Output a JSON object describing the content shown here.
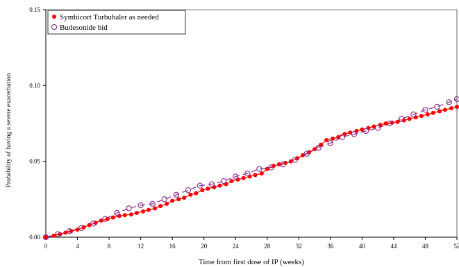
{
  "chart_data": {
    "type": "scatter",
    "title": "",
    "xlabel": "Time from first dose of IP (weeks)",
    "ylabel": "Probability of having a severe exacerbation",
    "xlim": [
      0,
      52
    ],
    "ylim": [
      0,
      0.15
    ],
    "x_ticks": [
      "0",
      "4",
      "8",
      "12",
      "16",
      "20",
      "24",
      "28",
      "32",
      "36",
      "40",
      "44",
      "48",
      "52"
    ],
    "y_ticks": [
      "0.00",
      "0.05",
      "0.10",
      "0.15"
    ],
    "legend_position": "top-left",
    "grid": false,
    "series": [
      {
        "name": "Symbicort Turbuhaler as needed",
        "marker": "filled-circle",
        "line_style": "solid",
        "color": "#ff0000",
        "x": [
          0,
          1,
          1.8,
          2.5,
          3.2,
          4,
          4.8,
          5.5,
          6.3,
          7,
          7.8,
          8.5,
          9.3,
          10,
          10.8,
          11.5,
          12.3,
          13,
          13.8,
          14.5,
          15.3,
          16,
          16.8,
          17.5,
          18.3,
          19,
          19.8,
          20.5,
          21.3,
          22,
          22.8,
          23.5,
          24.3,
          25,
          25.8,
          26.5,
          27.3,
          28,
          28.8,
          29.5,
          30.3,
          31,
          31.8,
          32.5,
          33.3,
          34,
          34.8,
          35.5,
          36.3,
          37,
          37.8,
          38.5,
          39.3,
          40,
          40.8,
          41.5,
          42.3,
          43,
          43.8,
          44.5,
          45.3,
          46,
          46.8,
          47.5,
          48.3,
          49,
          49.8,
          50.5,
          51.3,
          52
        ],
        "y": [
          0.0,
          0.001,
          0.002,
          0.003,
          0.004,
          0.005,
          0.0065,
          0.008,
          0.0095,
          0.011,
          0.012,
          0.013,
          0.014,
          0.0145,
          0.015,
          0.016,
          0.017,
          0.018,
          0.019,
          0.0205,
          0.022,
          0.024,
          0.025,
          0.026,
          0.028,
          0.029,
          0.031,
          0.032,
          0.033,
          0.034,
          0.035,
          0.037,
          0.038,
          0.039,
          0.04,
          0.041,
          0.042,
          0.045,
          0.047,
          0.048,
          0.049,
          0.05,
          0.052,
          0.054,
          0.056,
          0.058,
          0.061,
          0.064,
          0.065,
          0.066,
          0.068,
          0.069,
          0.07,
          0.071,
          0.072,
          0.073,
          0.074,
          0.075,
          0.0755,
          0.076,
          0.077,
          0.078,
          0.079,
          0.08,
          0.081,
          0.082,
          0.083,
          0.084,
          0.085,
          0.086
        ]
      },
      {
        "name": "Budesonide bid",
        "marker": "open-circle",
        "line_style": "dashed",
        "color": "#8a2b8a",
        "x": [
          0,
          1.5,
          3,
          4.5,
          6,
          7.5,
          9,
          10.5,
          12,
          13.5,
          15,
          16.5,
          18,
          19.5,
          21,
          22.5,
          24,
          25.5,
          27,
          28.5,
          30,
          31.5,
          33,
          34.5,
          36,
          37.5,
          39,
          40.5,
          42,
          43.5,
          45,
          46.5,
          48,
          49.5,
          51,
          52
        ],
        "y": [
          0.0,
          0.002,
          0.004,
          0.006,
          0.009,
          0.012,
          0.016,
          0.019,
          0.021,
          0.022,
          0.025,
          0.028,
          0.031,
          0.034,
          0.035,
          0.037,
          0.04,
          0.042,
          0.045,
          0.046,
          0.048,
          0.051,
          0.055,
          0.059,
          0.062,
          0.066,
          0.068,
          0.07,
          0.072,
          0.075,
          0.078,
          0.081,
          0.084,
          0.086,
          0.089,
          0.091
        ]
      }
    ]
  }
}
